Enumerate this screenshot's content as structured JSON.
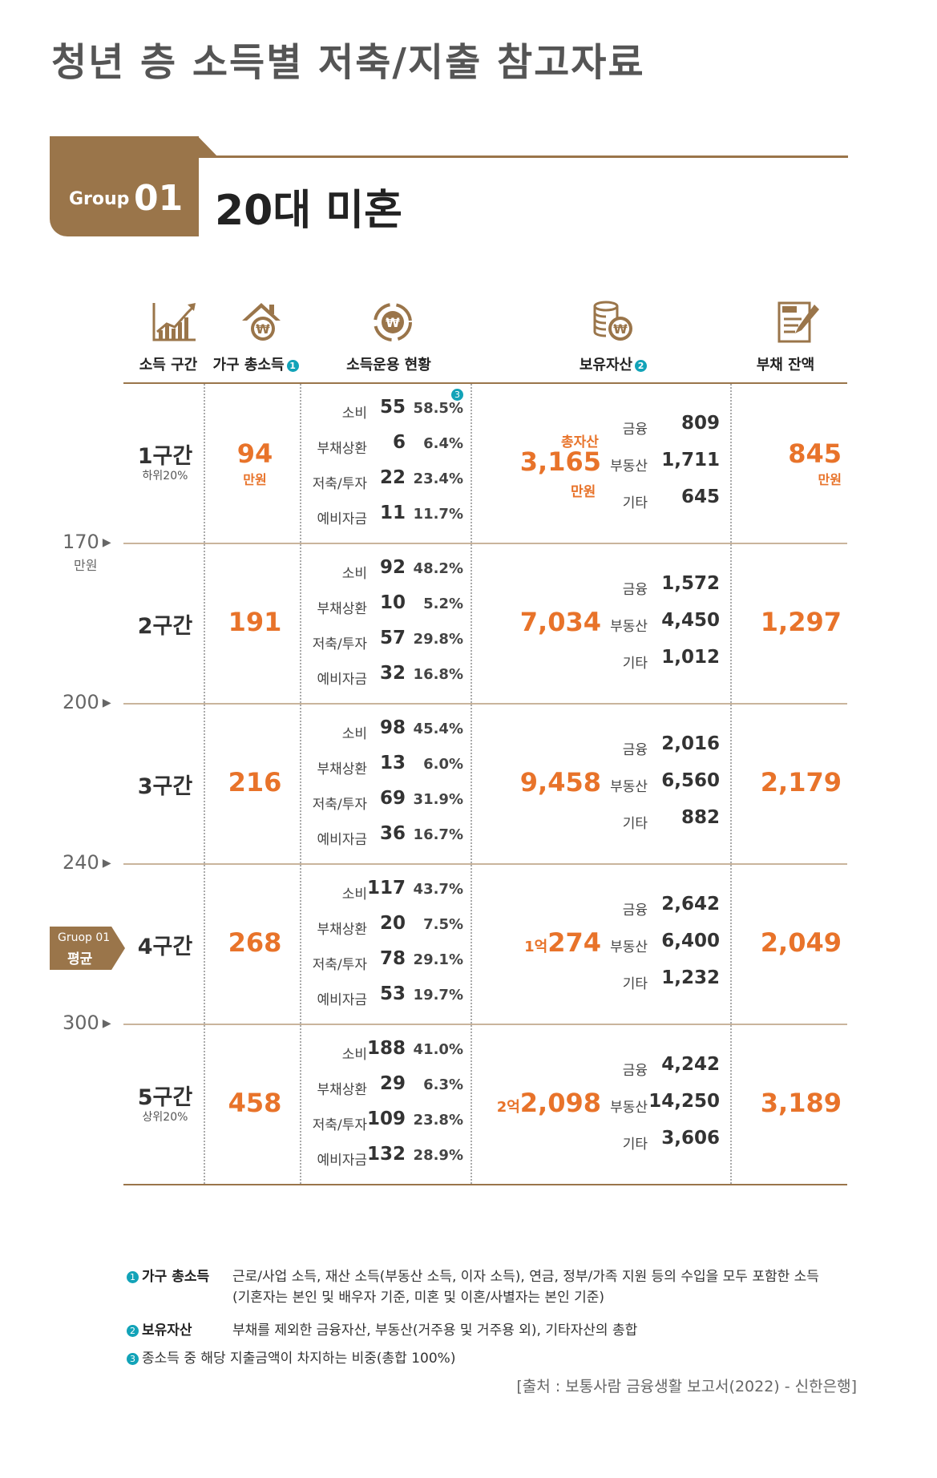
{
  "page_title": "청년 층 소득별 저축/지출 참고자료",
  "group": {
    "small": "Group",
    "number": "01",
    "title": "20대 미혼"
  },
  "headers": {
    "bracket": "소득 구간",
    "income": "가구 총소득",
    "usage": "소득운용 현황",
    "assets": "보유자산",
    "debt": "부채 잔액",
    "marker1": "1",
    "marker2": "2",
    "marker3": "3"
  },
  "icons": {
    "bracket": "bar-chart-icon",
    "income": "house-won-icon",
    "usage": "won-cycle-icon",
    "assets": "coin-stack-icon",
    "debt": "loan-document-icon"
  },
  "accent_color": "#e8732a",
  "brand_color": "#9a754a",
  "thresholds": [
    {
      "value": "170",
      "unit": "만원"
    },
    {
      "value": "200"
    },
    {
      "value": "240"
    },
    {
      "value": "300"
    }
  ],
  "average_tag": {
    "line1": "Gruop 01",
    "line2": "평균"
  },
  "rows": [
    {
      "bracket": "1구간",
      "sub": "하위20%",
      "income": "94",
      "income_unit": "만원",
      "usage": [
        {
          "label": "소비",
          "amount": "55",
          "pct": "58.5%"
        },
        {
          "label": "부채상환",
          "amount": "6",
          "pct": "6.4%"
        },
        {
          "label": "저축/투자",
          "amount": "22",
          "pct": "23.4%"
        },
        {
          "label": "예비자금",
          "amount": "11",
          "pct": "11.7%"
        }
      ],
      "asset_tag": "총자산",
      "asset_total_prefix": "",
      "asset_total": "3,165",
      "asset_unit": "만원",
      "assets": [
        {
          "label": "금융",
          "value": "809"
        },
        {
          "label": "부동산",
          "value": "1,711"
        },
        {
          "label": "기타",
          "value": "645"
        }
      ],
      "debt": "845",
      "debt_unit": "만원"
    },
    {
      "bracket": "2구간",
      "sub": "",
      "income": "191",
      "income_unit": "",
      "usage": [
        {
          "label": "소비",
          "amount": "92",
          "pct": "48.2%"
        },
        {
          "label": "부채상환",
          "amount": "10",
          "pct": "5.2%"
        },
        {
          "label": "저축/투자",
          "amount": "57",
          "pct": "29.8%"
        },
        {
          "label": "예비자금",
          "amount": "32",
          "pct": "16.8%"
        }
      ],
      "asset_tag": "",
      "asset_total_prefix": "",
      "asset_total": "7,034",
      "asset_unit": "",
      "assets": [
        {
          "label": "금융",
          "value": "1,572"
        },
        {
          "label": "부동산",
          "value": "4,450"
        },
        {
          "label": "기타",
          "value": "1,012"
        }
      ],
      "debt": "1,297",
      "debt_unit": ""
    },
    {
      "bracket": "3구간",
      "sub": "",
      "income": "216",
      "income_unit": "",
      "usage": [
        {
          "label": "소비",
          "amount": "98",
          "pct": "45.4%"
        },
        {
          "label": "부채상환",
          "amount": "13",
          "pct": "6.0%"
        },
        {
          "label": "저축/투자",
          "amount": "69",
          "pct": "31.9%"
        },
        {
          "label": "예비자금",
          "amount": "36",
          "pct": "16.7%"
        }
      ],
      "asset_tag": "",
      "asset_total_prefix": "",
      "asset_total": "9,458",
      "asset_unit": "",
      "assets": [
        {
          "label": "금융",
          "value": "2,016"
        },
        {
          "label": "부동산",
          "value": "6,560"
        },
        {
          "label": "기타",
          "value": "882"
        }
      ],
      "debt": "2,179",
      "debt_unit": ""
    },
    {
      "bracket": "4구간",
      "sub": "",
      "income": "268",
      "income_unit": "",
      "usage": [
        {
          "label": "소비",
          "amount": "117",
          "pct": "43.7%"
        },
        {
          "label": "부채상환",
          "amount": "20",
          "pct": "7.5%"
        },
        {
          "label": "저축/투자",
          "amount": "78",
          "pct": "29.1%"
        },
        {
          "label": "예비자금",
          "amount": "53",
          "pct": "19.7%"
        }
      ],
      "asset_tag": "",
      "asset_total_prefix": "1억",
      "asset_total": "274",
      "asset_unit": "",
      "assets": [
        {
          "label": "금융",
          "value": "2,642"
        },
        {
          "label": "부동산",
          "value": "6,400"
        },
        {
          "label": "기타",
          "value": "1,232"
        }
      ],
      "debt": "2,049",
      "debt_unit": ""
    },
    {
      "bracket": "5구간",
      "sub": "상위20%",
      "income": "458",
      "income_unit": "",
      "usage": [
        {
          "label": "소비",
          "amount": "188",
          "pct": "41.0%"
        },
        {
          "label": "부채상환",
          "amount": "29",
          "pct": "6.3%"
        },
        {
          "label": "저축/투자",
          "amount": "109",
          "pct": "23.8%"
        },
        {
          "label": "예비자금",
          "amount": "132",
          "pct": "28.9%"
        }
      ],
      "asset_tag": "",
      "asset_total_prefix": "2억",
      "asset_total": "2,098",
      "asset_unit": "",
      "assets": [
        {
          "label": "금융",
          "value": "4,242"
        },
        {
          "label": "부동산",
          "value": "14,250"
        },
        {
          "label": "기타",
          "value": "3,606"
        }
      ],
      "debt": "3,189",
      "debt_unit": ""
    }
  ],
  "notes": [
    {
      "marker": "1",
      "term": "가구 총소득",
      "text": "근로/사업 소득, 재산 소득(부동산 소득, 이자 소득), 연금, 정부/가족 지원 등의 수입을 모두 포함한 소득",
      "text2": "(기혼자는 본인 및 배우자 기준, 미혼 및 이혼/사별자는 본인 기준)"
    },
    {
      "marker": "2",
      "term": "보유자산",
      "text": "부채를 제외한 금융자산, 부동산(거주용 및 거주용 외), 기타자산의 총합"
    },
    {
      "marker": "3",
      "text": "종소득 중 해당 지출금액이 차지하는 비중(총합 100%)"
    }
  ],
  "source": "[출처 : 보통사람 금융생활 보고서(2022) - 신한은행]"
}
